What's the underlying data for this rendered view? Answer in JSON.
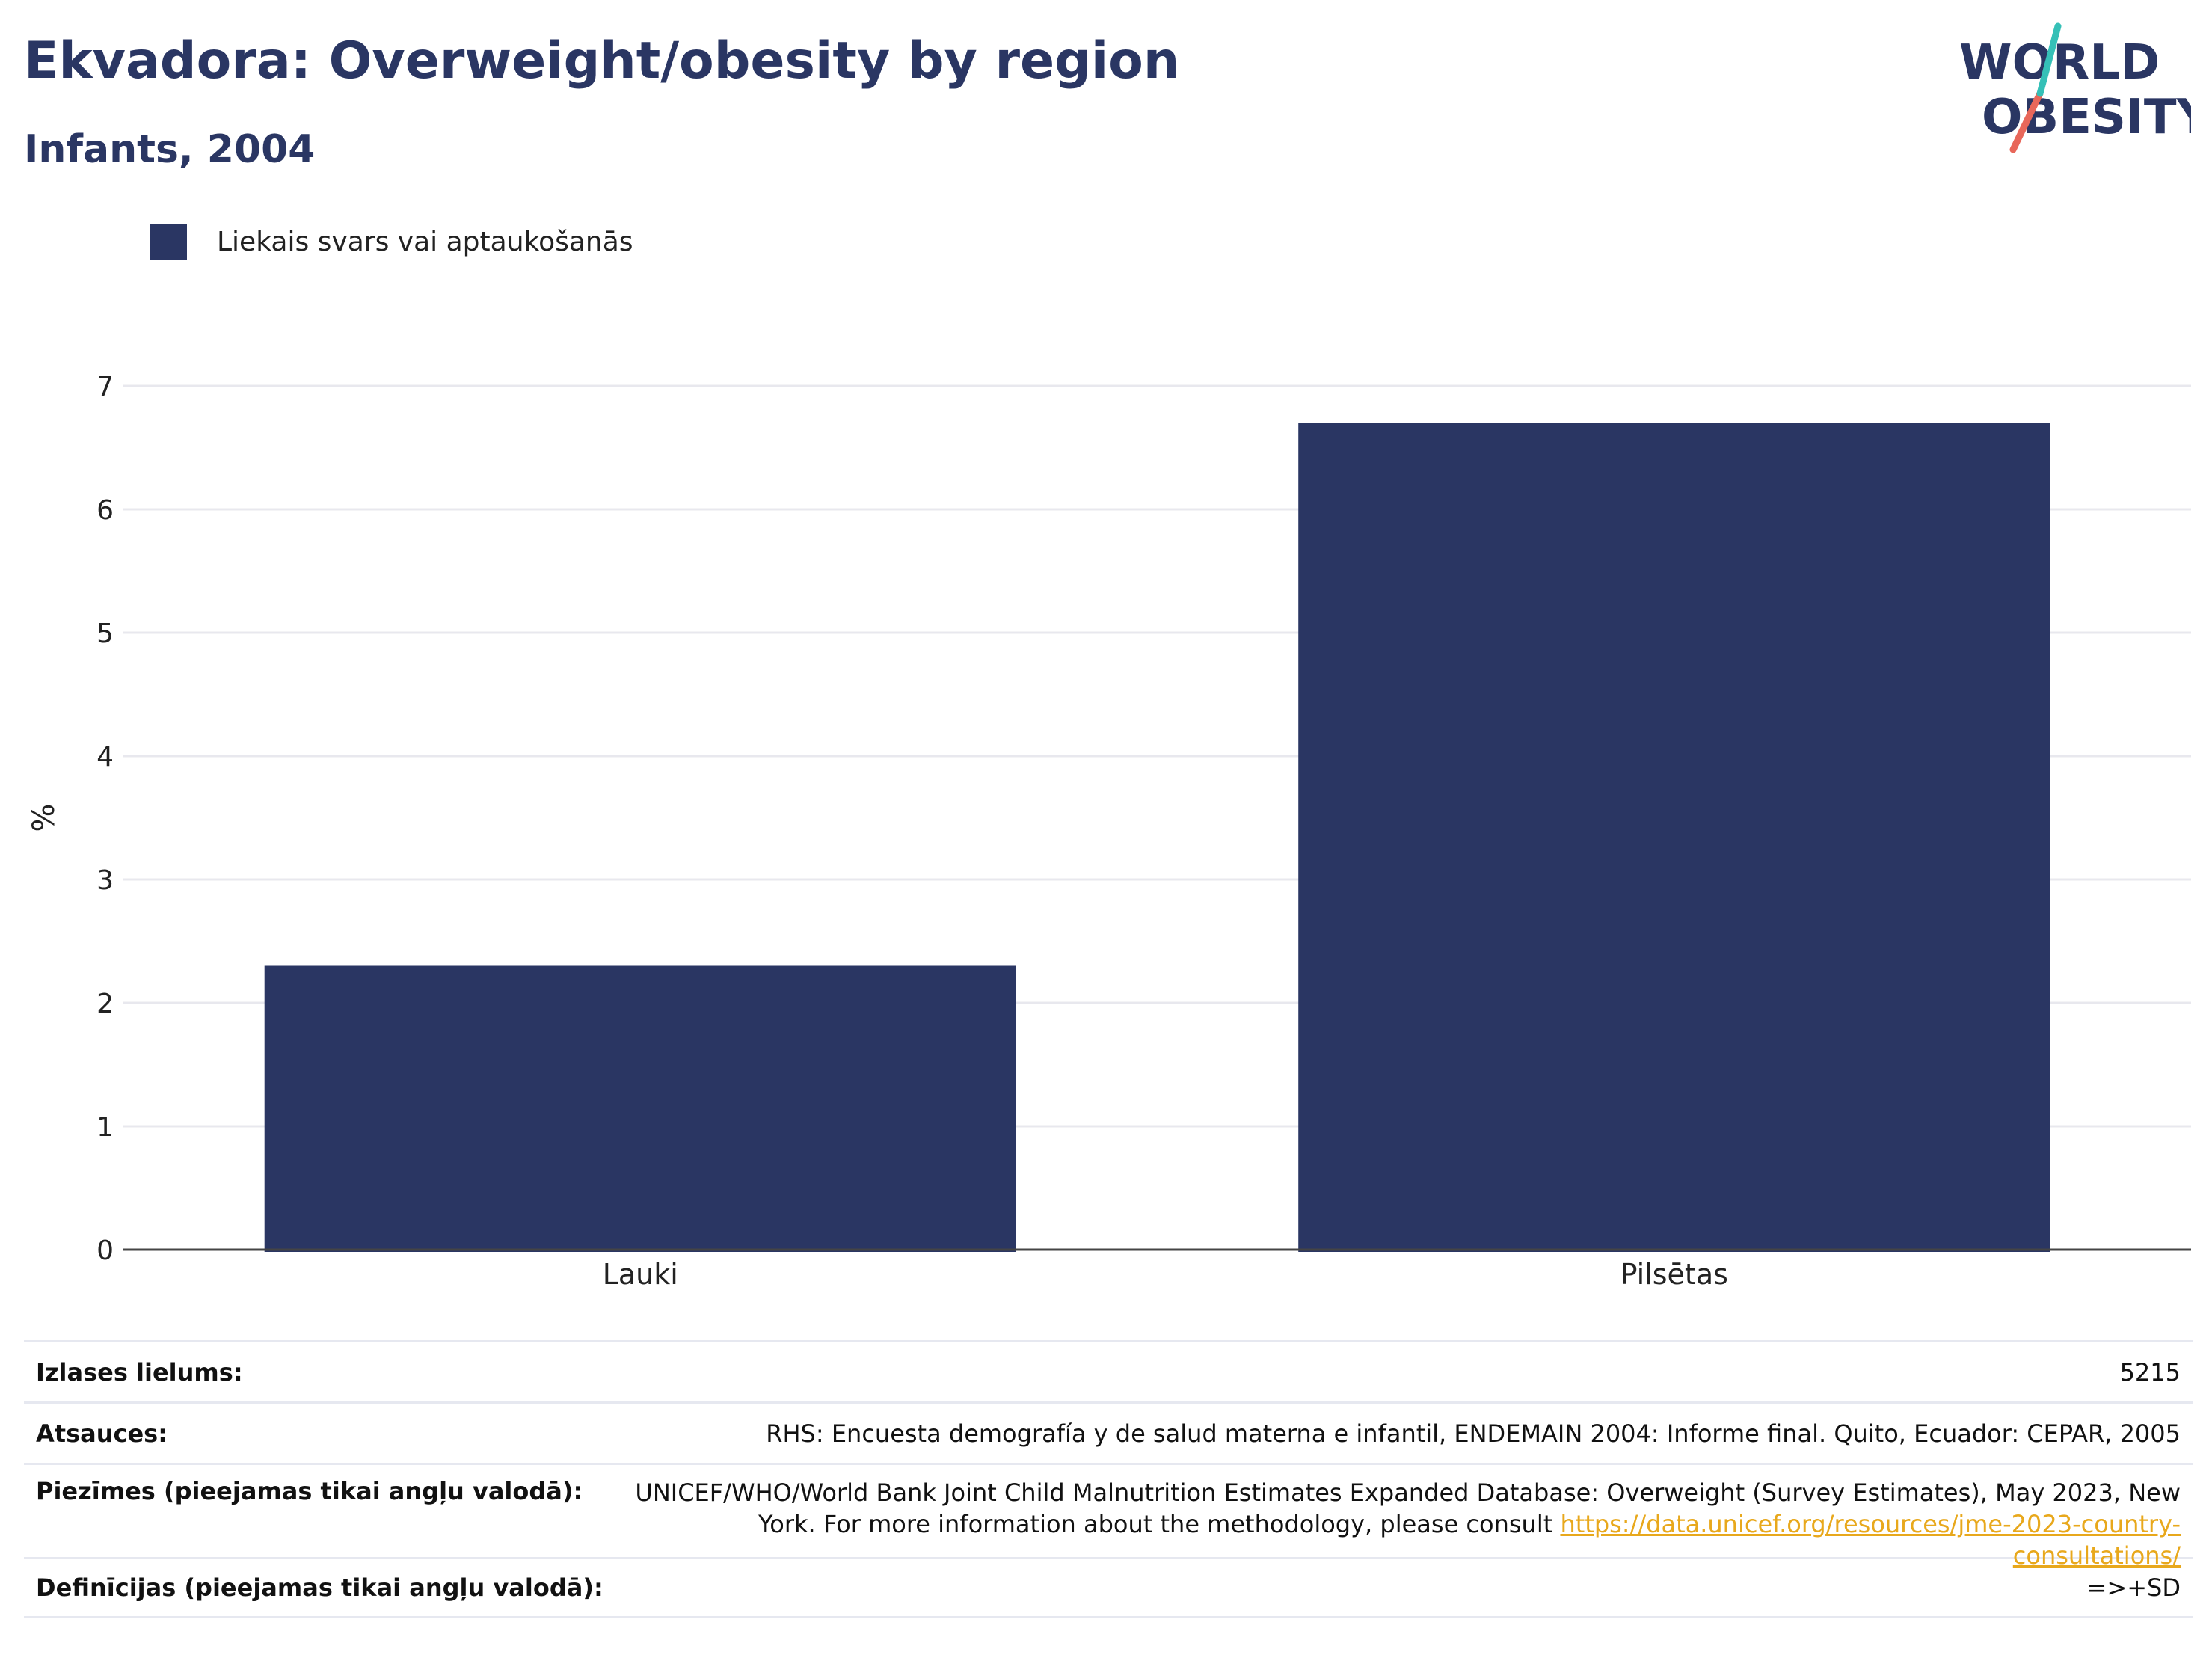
{
  "header": {
    "title": "Ekvadora: Overweight/obesity by region",
    "subtitle": "Infants, 2004"
  },
  "logo": {
    "line1": "WORLD",
    "line2": "OBESITY"
  },
  "legend": {
    "label": "Liekais svars vai aptaukošanās",
    "color": "#2a3663"
  },
  "chart_data": {
    "type": "bar",
    "categories": [
      "Lauki",
      "Pilsētas"
    ],
    "series": [
      {
        "name": "Liekais svars vai aptaukošanās",
        "values": [
          2.3,
          6.7
        ]
      }
    ],
    "ylabel": "%",
    "xlabel": "",
    "ylim": [
      0,
      7
    ],
    "yticks": [
      "0",
      "1",
      "2",
      "3",
      "4",
      "5",
      "6",
      "7"
    ],
    "grid": true,
    "legend_position": "top-left",
    "bar_color": "#2a3663"
  },
  "info": {
    "sample_size_label": "Izlases lielums:",
    "sample_size_value": "5215",
    "references_label": "Atsauces:",
    "references_value": "RHS: Encuesta demografía y de salud materna e infantil, ENDEMAIN 2004: Informe final. Quito, Ecuador: CEPAR, 2005",
    "notes_label": "Piezīmes (pieejamas tikai angļu valodā):",
    "notes_value_line1": "UNICEF/WHO/World Bank Joint Child Malnutrition Estimates Expanded Database: Overweight (Survey Estimates), May 2023, New",
    "notes_value_line2": "York. For more information about the methodology, please consult",
    "notes_link": "https://data.unicef.org/resources/jme-2023-country-consultations/",
    "definitions_label": "Definīcijas (pieejamas tikai angļu valodā):",
    "definitions_value": "=>+SD"
  }
}
